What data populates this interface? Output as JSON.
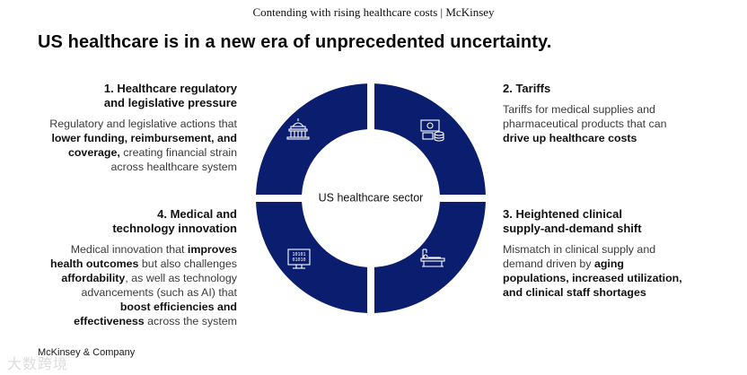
{
  "header": {
    "title": "Contending with rising healthcare costs | McKinsey"
  },
  "headline": "US healthcare is in a new era of unprecedented uncertainty.",
  "center_label": "US healthcare sector",
  "segments": [
    {
      "title_line1": "1. Healthcare regulatory",
      "title_line2": "and legislative pressure",
      "desc": [
        "Regulatory and legislative actions that",
        "lower funding, reimbursement, and",
        "coverage,",
        " creating financial strain",
        "across healthcare system"
      ],
      "icon": "capitol-building-icon"
    },
    {
      "title_line1": "2. Tariffs",
      "desc": [
        "Tariffs for medical supplies and",
        "pharmaceutical products that can",
        "drive up healthcare costs"
      ],
      "icon": "money-coins-icon"
    },
    {
      "title_line1": "3. Heightened clinical",
      "title_line2": "supply-and-demand shift",
      "desc": [
        "Mismatch in clinical supply and",
        "demand driven by ",
        "aging",
        "populations, increased utilization,",
        "and clinical staff shortages"
      ],
      "icon": "hospital-bed-icon"
    },
    {
      "title_line1": "4. Medical and",
      "title_line2": "technology innovation",
      "desc": [
        "Medical innovation that ",
        "improves",
        "health outcomes",
        " but also challenges",
        "affordability",
        ", as well as technology",
        "advancements (such as AI) that",
        "boost efficiencies and",
        "effectiveness",
        " across the system"
      ],
      "icon": "binary-computer-icon"
    }
  ],
  "footer": {
    "company": "McKinsey & Company"
  },
  "watermark": "大数跨境",
  "colors": {
    "ring": "#0b1d6f",
    "icon_stroke": "#ffffff"
  }
}
